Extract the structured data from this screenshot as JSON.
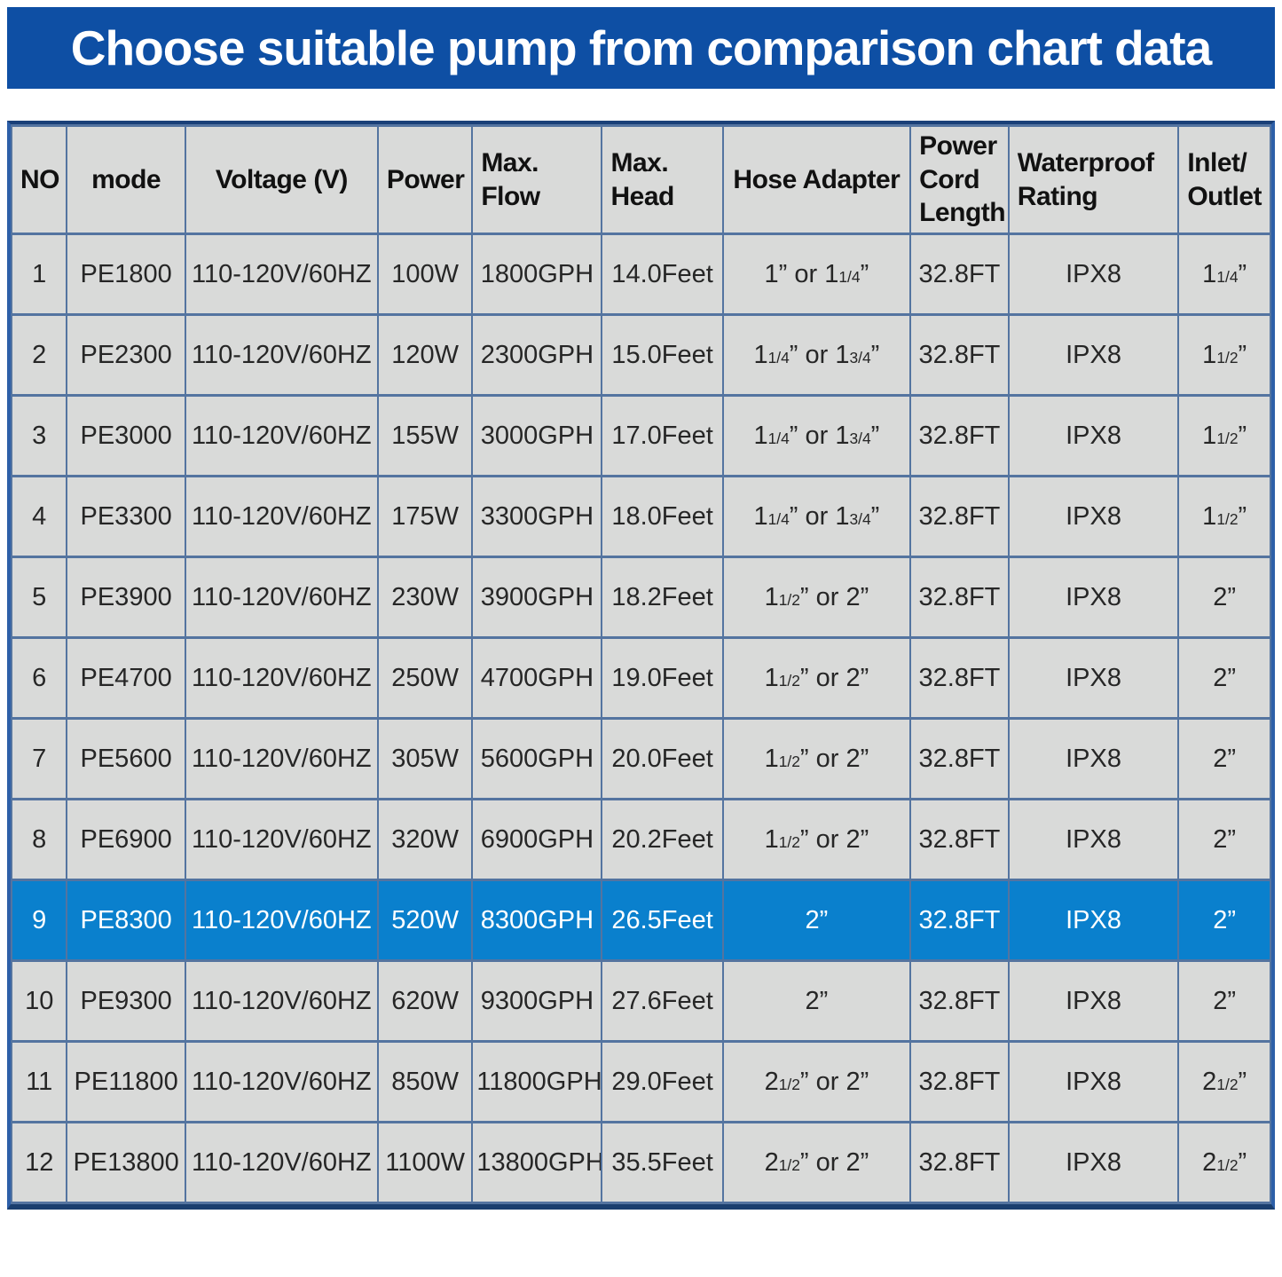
{
  "banner": {
    "title": "Choose suitable pump from comparison chart data",
    "bg_color": "#0e4fa4",
    "text_color": "#ffffff"
  },
  "chart_data": {
    "type": "table",
    "title": "Choose suitable pump from comparison chart data",
    "fraction_marker_note": "{n/d} renders as small inline fraction text",
    "columns": [
      {
        "key": "no",
        "label": "NO",
        "width": "4.4%",
        "header_align": "center"
      },
      {
        "key": "mode",
        "label": "mode",
        "width": "9.4%",
        "header_align": "center"
      },
      {
        "key": "voltage",
        "label": "Voltage (V)",
        "width": "15.3%",
        "header_align": "center"
      },
      {
        "key": "power",
        "label": "Power",
        "width": "7.5%",
        "header_align": "center"
      },
      {
        "key": "max_flow",
        "label": "Max.\nFlow",
        "width": "10.3%",
        "header_align": "left"
      },
      {
        "key": "max_head",
        "label": "Max.\nHead",
        "width": "9.6%",
        "header_align": "left"
      },
      {
        "key": "hose_adapter",
        "label": "Hose Adapter",
        "width": "14.9%",
        "header_align": "center"
      },
      {
        "key": "cord_length",
        "label": "Power\nCord\nLength",
        "width": "7.8%",
        "header_align": "left"
      },
      {
        "key": "waterproof",
        "label": "Waterproof\nRating",
        "width": "13.5%",
        "header_align": "left"
      },
      {
        "key": "inlet_outlet",
        "label": "Inlet/\nOutlet",
        "width": "7.3%",
        "header_align": "left"
      }
    ],
    "rows": [
      [
        "1",
        "PE1800",
        "110-120V/60HZ",
        "100W",
        "1800GPH",
        "14.0Feet",
        "1” or 1{1/4}”",
        "32.8FT",
        "IPX8",
        "1{1/4}”"
      ],
      [
        "2",
        "PE2300",
        "110-120V/60HZ",
        "120W",
        "2300GPH",
        "15.0Feet",
        "1{1/4}” or 1{3/4}”",
        "32.8FT",
        "IPX8",
        "1{1/2}”"
      ],
      [
        "3",
        "PE3000",
        "110-120V/60HZ",
        "155W",
        "3000GPH",
        "17.0Feet",
        "1{1/4}” or 1{3/4}”",
        "32.8FT",
        "IPX8",
        "1{1/2}”"
      ],
      [
        "4",
        "PE3300",
        "110-120V/60HZ",
        "175W",
        "3300GPH",
        "18.0Feet",
        "1{1/4}” or 1{3/4}”",
        "32.8FT",
        "IPX8",
        "1{1/2}”"
      ],
      [
        "5",
        "PE3900",
        "110-120V/60HZ",
        "230W",
        "3900GPH",
        "18.2Feet",
        "1{1/2}” or 2”",
        "32.8FT",
        "IPX8",
        "2”"
      ],
      [
        "6",
        "PE4700",
        "110-120V/60HZ",
        "250W",
        "4700GPH",
        "19.0Feet",
        "1{1/2}” or 2”",
        "32.8FT",
        "IPX8",
        "2”"
      ],
      [
        "7",
        "PE5600",
        "110-120V/60HZ",
        "305W",
        "5600GPH",
        "20.0Feet",
        "1{1/2}” or 2”",
        "32.8FT",
        "IPX8",
        "2”"
      ],
      [
        "8",
        "PE6900",
        "110-120V/60HZ",
        "320W",
        "6900GPH",
        "20.2Feet",
        "1{1/2}” or 2”",
        "32.8FT",
        "IPX8",
        "2”"
      ],
      [
        "9",
        "PE8300",
        "110-120V/60HZ",
        "520W",
        "8300GPH",
        "26.5Feet",
        "2”",
        "32.8FT",
        "IPX8",
        "2”"
      ],
      [
        "10",
        "PE9300",
        "110-120V/60HZ",
        "620W",
        "9300GPH",
        "27.6Feet",
        "2”",
        "32.8FT",
        "IPX8",
        "2”"
      ],
      [
        "11",
        "PE11800",
        "110-120V/60HZ",
        "850W",
        "11800GPH",
        "29.0Feet",
        "2{1/2}” or 2”",
        "32.8FT",
        "IPX8",
        "2{1/2}”"
      ],
      [
        "12",
        "PE13800",
        "110-120V/60HZ",
        "1100W",
        "13800GPH",
        "35.5Feet",
        "2{1/2}” or 2”",
        "32.8FT",
        "IPX8",
        "2{1/2}”"
      ]
    ],
    "highlighted_row_index": 8,
    "layout": {
      "legend": "none",
      "grid": "on",
      "colors": {
        "cell_bg": "#d9dad9",
        "grid_line": "#5474a0",
        "outer_border": "#2d5fa8",
        "outer_border_bottom": "#1a3e6e",
        "highlight_bg": "#0a80cd",
        "highlight_text": "#ffffff",
        "header_text": "#111111",
        "body_text": "#262626"
      }
    }
  }
}
